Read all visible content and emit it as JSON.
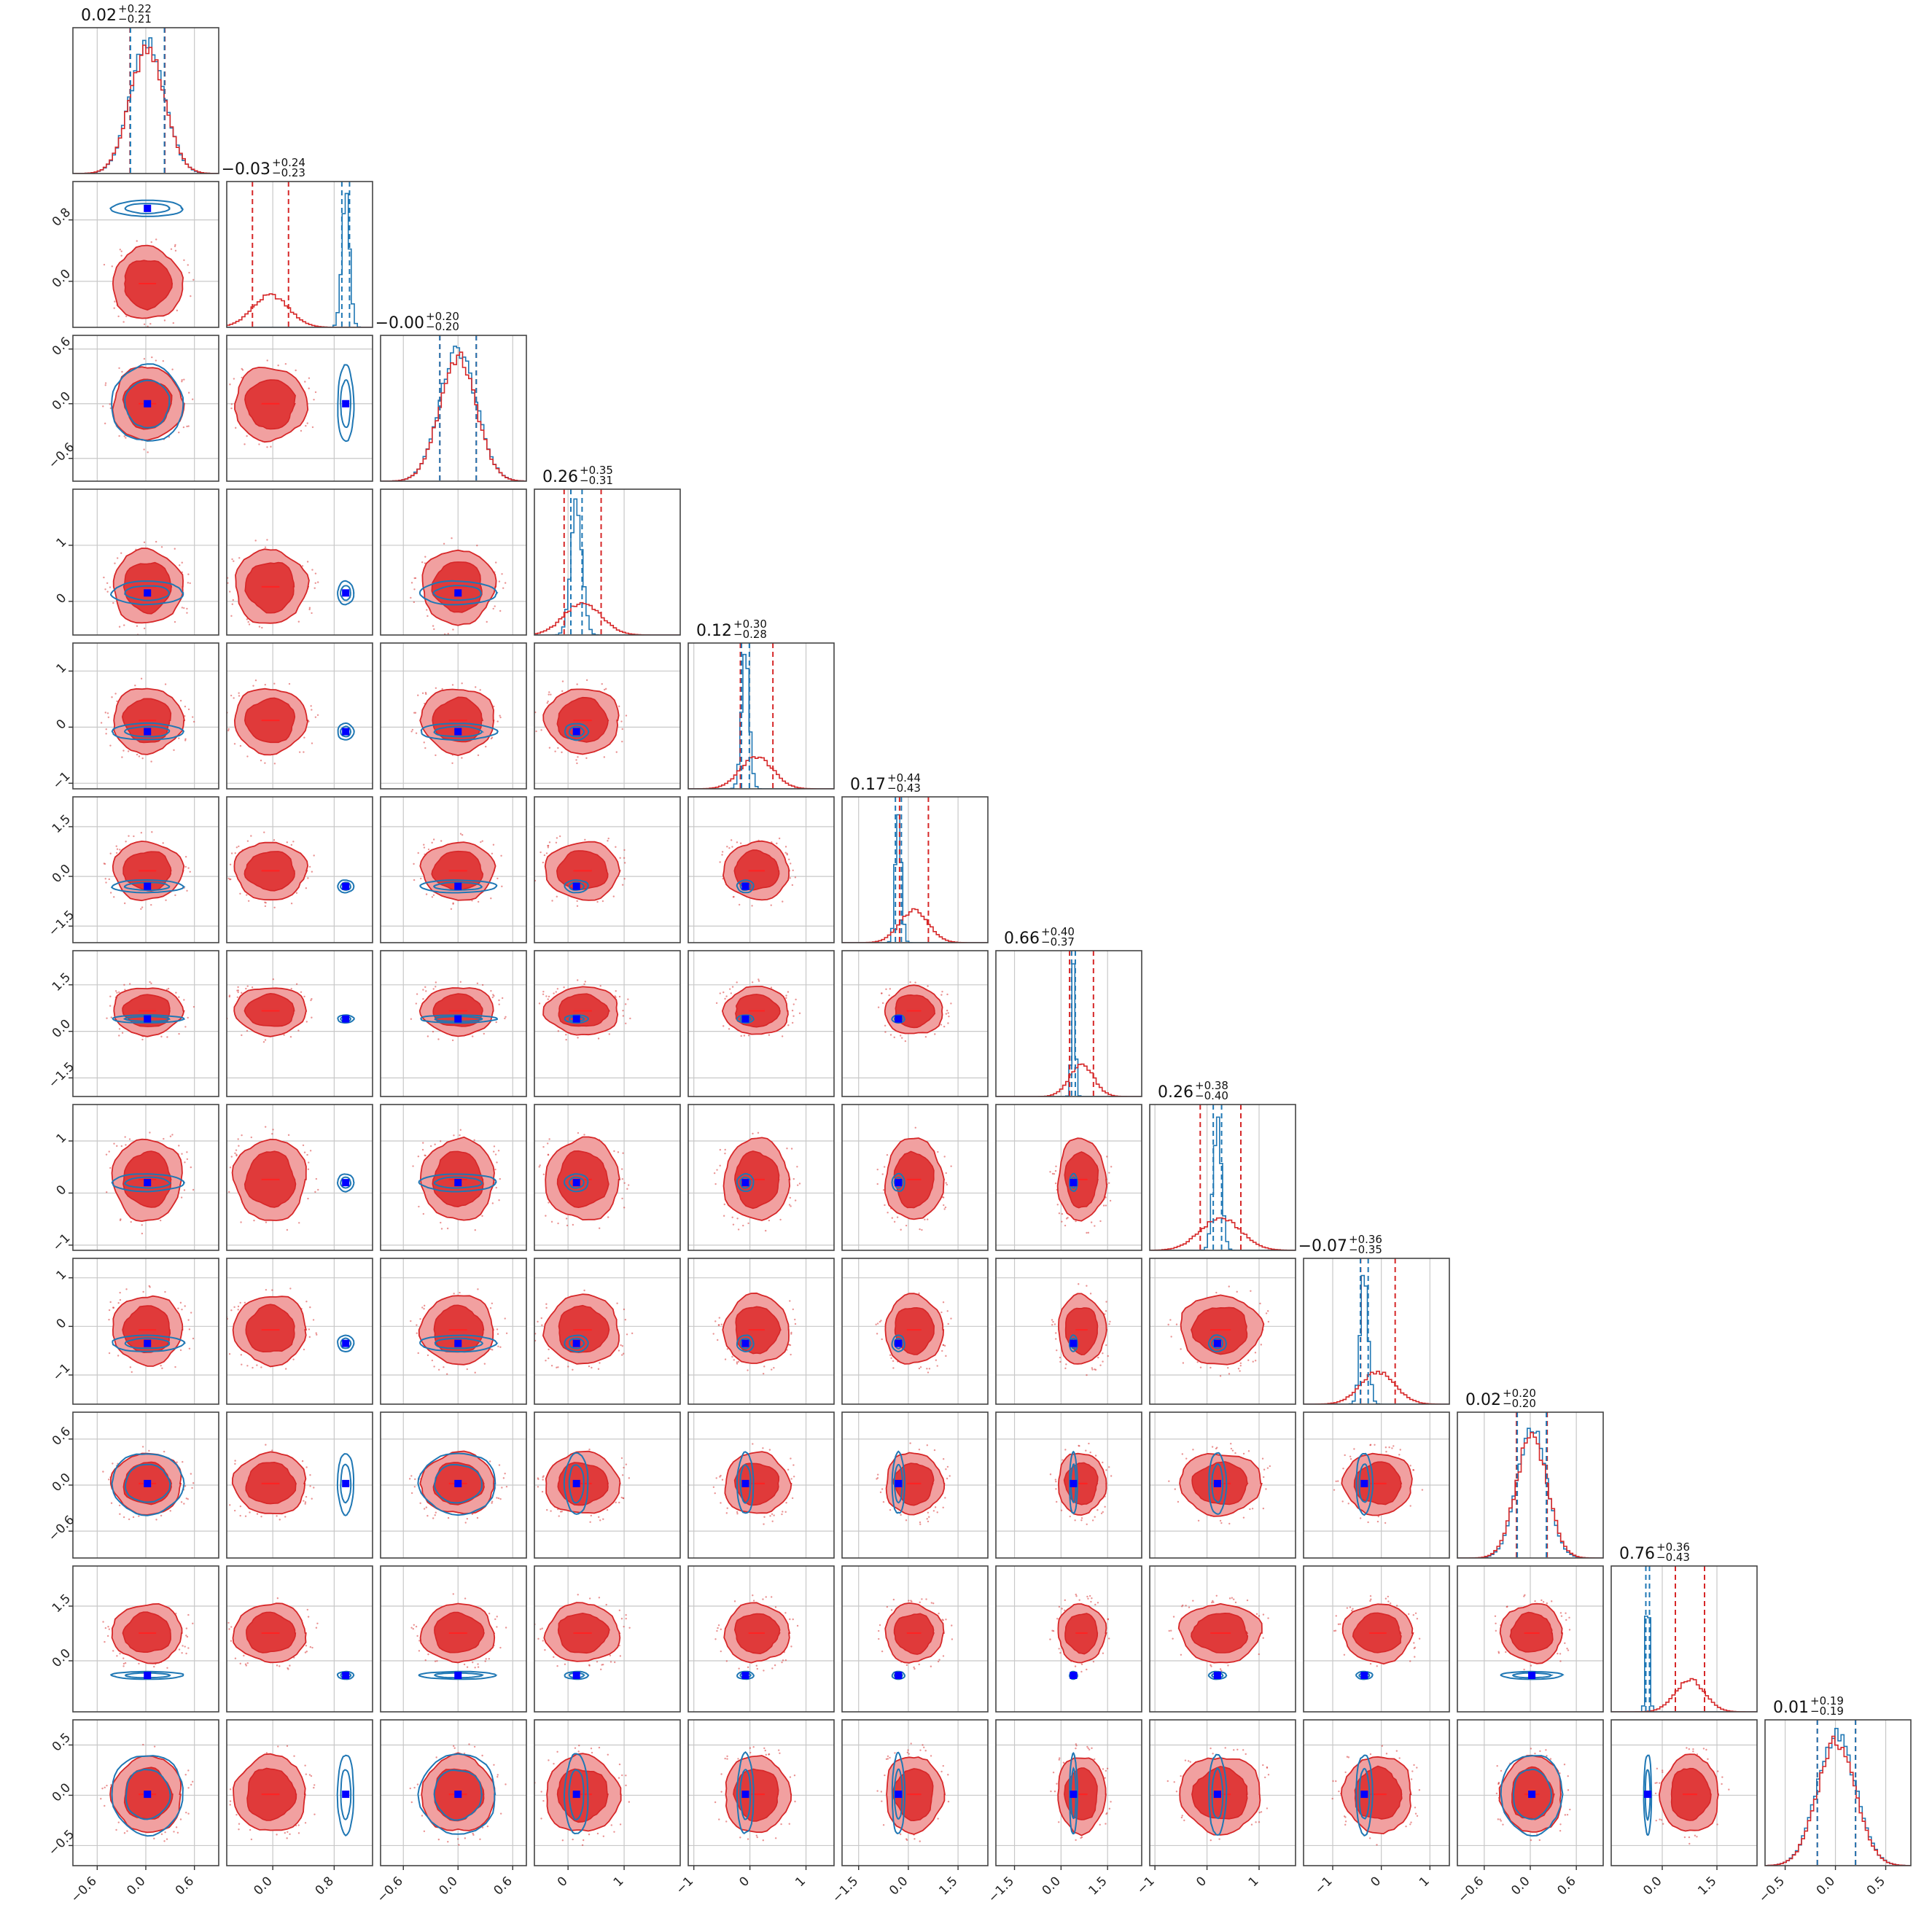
{
  "chart_data": {
    "type": "corner",
    "n_params": 12,
    "grid": true,
    "colors": {
      "posterior_wide": "#d62728",
      "posterior_narrow": "#1f77b4",
      "true_value_marker": "#0000ff",
      "fill_inner": "#e03a3a",
      "fill_outer": "#f1a0a0"
    },
    "titles": [
      {
        "median": "0.02",
        "upper": "+0.22",
        "lower": "−0.21"
      },
      {
        "median": "−0.03",
        "upper": "+0.24",
        "lower": "−0.23"
      },
      {
        "median": "−0.00",
        "upper": "+0.20",
        "lower": "−0.20"
      },
      {
        "median": "0.26",
        "upper": "+0.35",
        "lower": "−0.31"
      },
      {
        "median": "0.12",
        "upper": "+0.30",
        "lower": "−0.28"
      },
      {
        "median": "0.17",
        "upper": "+0.44",
        "lower": "−0.43"
      },
      {
        "median": "0.66",
        "upper": "+0.40",
        "lower": "−0.37"
      },
      {
        "median": "0.26",
        "upper": "+0.38",
        "lower": "−0.40"
      },
      {
        "median": "−0.07",
        "upper": "+0.36",
        "lower": "−0.35"
      },
      {
        "median": "0.02",
        "upper": "+0.20",
        "lower": "−0.20"
      },
      {
        "median": "0.76",
        "upper": "+0.36",
        "lower": "−0.43"
      },
      {
        "median": "0.01",
        "upper": "+0.19",
        "lower": "−0.19"
      }
    ],
    "params": [
      {
        "range": [
          -0.9,
          0.9
        ],
        "ticks": [
          -0.6,
          0.0,
          0.6
        ],
        "tick_labels": [
          "−0.6",
          "0.0",
          "0.6"
        ],
        "wide": {
          "median": 0.02,
          "sigma": 0.215
        },
        "narrow": {
          "mean": 0.02,
          "sigma": 0.21
        },
        "truth": 0.02
      },
      {
        "range": [
          -0.6,
          1.3
        ],
        "ticks": [
          0.0,
          0.8
        ],
        "tick_labels": [
          "0.0",
          "0.8"
        ],
        "wide": {
          "median": -0.03,
          "sigma": 0.235
        },
        "narrow": {
          "mean": 0.95,
          "sigma": 0.05
        },
        "truth": 0.95
      },
      {
        "range": [
          -0.85,
          0.75
        ],
        "ticks": [
          -0.6,
          0.0,
          0.6
        ],
        "tick_labels": [
          "−0.6",
          "0.0",
          "0.6"
        ],
        "wide": {
          "median": 0.0,
          "sigma": 0.2
        },
        "narrow": {
          "mean": 0.0,
          "sigma": 0.2
        },
        "truth": 0.0
      },
      {
        "range": [
          -0.6,
          2.0
        ],
        "ticks": [
          0,
          1
        ],
        "tick_labels": [
          "0",
          "1"
        ],
        "wide": {
          "median": 0.26,
          "sigma": 0.33
        },
        "narrow": {
          "mean": 0.15,
          "sigma": 0.1
        },
        "truth": 0.15
      },
      {
        "range": [
          -1.1,
          1.5
        ],
        "ticks": [
          -1,
          0,
          1
        ],
        "tick_labels": [
          "−1",
          "0",
          "1"
        ],
        "wide": {
          "median": 0.12,
          "sigma": 0.29
        },
        "narrow": {
          "mean": -0.08,
          "sigma": 0.07
        },
        "truth": -0.08
      },
      {
        "range": [
          -2.0,
          2.4
        ],
        "ticks": [
          -1.5,
          0.0,
          1.5
        ],
        "tick_labels": [
          "−1.5",
          "0.0",
          "1.5"
        ],
        "wide": {
          "median": 0.17,
          "sigma": 0.435
        },
        "narrow": {
          "mean": -0.3,
          "sigma": 0.09
        },
        "truth": -0.3
      },
      {
        "range": [
          -2.1,
          2.6
        ],
        "ticks": [
          -1.5,
          0.0,
          1.5
        ],
        "tick_labels": [
          "−1.5",
          "0.0",
          "1.5"
        ],
        "wide": {
          "median": 0.66,
          "sigma": 0.385
        },
        "narrow": {
          "mean": 0.4,
          "sigma": 0.06
        },
        "truth": 0.4
      },
      {
        "range": [
          -1.1,
          1.7
        ],
        "ticks": [
          -1,
          0,
          1
        ],
        "tick_labels": [
          "−1",
          "0",
          "1"
        ],
        "wide": {
          "median": 0.26,
          "sigma": 0.39
        },
        "narrow": {
          "mean": 0.2,
          "sigma": 0.08
        },
        "truth": 0.2
      },
      {
        "range": [
          -1.6,
          1.4
        ],
        "ticks": [
          -1,
          0,
          1
        ],
        "tick_labels": [
          "−1",
          "0",
          "1"
        ],
        "wide": {
          "median": -0.07,
          "sigma": 0.355
        },
        "narrow": {
          "mean": -0.35,
          "sigma": 0.08
        },
        "truth": -0.35
      },
      {
        "range": [
          -0.95,
          0.95
        ],
        "ticks": [
          -0.6,
          0.0,
          0.6
        ],
        "tick_labels": [
          "−0.6",
          "0.0",
          "0.6"
        ],
        "wide": {
          "median": 0.02,
          "sigma": 0.2
        },
        "narrow": {
          "mean": 0.02,
          "sigma": 0.19
        },
        "truth": 0.02
      },
      {
        "range": [
          -1.4,
          2.6
        ],
        "ticks": [
          0.0,
          1.5
        ],
        "tick_labels": [
          "0.0",
          "1.5"
        ],
        "wide": {
          "median": 0.76,
          "sigma": 0.4
        },
        "narrow": {
          "mean": -0.4,
          "sigma": 0.05
        },
        "truth": -0.4
      },
      {
        "range": [
          -0.7,
          0.75
        ],
        "ticks": [
          -0.5,
          0.0,
          0.5
        ],
        "tick_labels": [
          "−0.5",
          "0.0",
          "0.5"
        ],
        "wide": {
          "median": 0.01,
          "sigma": 0.19
        },
        "narrow": {
          "mean": 0.01,
          "sigma": 0.19
        },
        "truth": 0.01
      }
    ]
  }
}
